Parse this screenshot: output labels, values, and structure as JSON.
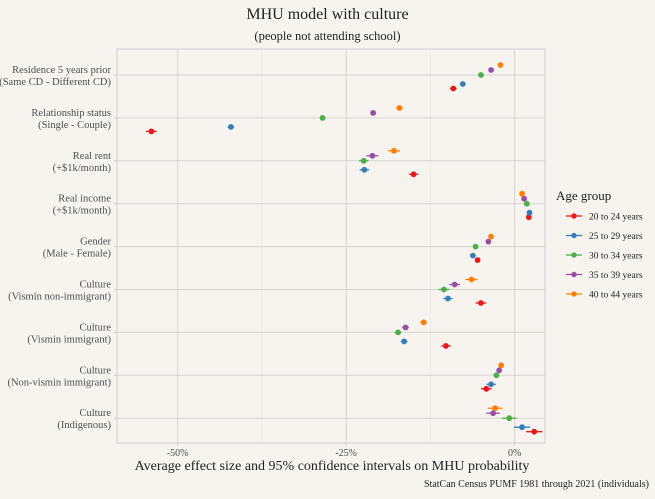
{
  "chart_data": {
    "type": "scatter",
    "subtype": "dot-and-whisker",
    "title": "MHU model with culture",
    "subtitle": "(people not attending school)",
    "xlabel": "Average effect size and 95% confidence intervals on MHU probability",
    "ylabel": "",
    "caption": "StatCan Census PUMF 1981 through 2021 (individuals)",
    "xlim": [
      -59,
      4.5
    ],
    "xticks": [
      -50,
      -25,
      0
    ],
    "xtick_labels": [
      "-50%",
      "-25%",
      "0%"
    ],
    "grid": true,
    "legend": {
      "title": "Age group",
      "position": "right"
    },
    "categories": [
      {
        "line1": "Residence 5 years prior",
        "line2": "(Same CD - Different CD)"
      },
      {
        "line1": "Relationship status",
        "line2": "(Single - Couple)"
      },
      {
        "line1": "Real rent",
        "line2": "(+$1k/month)"
      },
      {
        "line1": "Real income",
        "line2": "(+$1k/month)"
      },
      {
        "line1": "Gender",
        "line2": "(Male - Female)"
      },
      {
        "line1": "Culture",
        "line2": "(Vismin non-immigrant)"
      },
      {
        "line1": "Culture",
        "line2": "(Vismin immigrant)"
      },
      {
        "line1": "Culture",
        "line2": "(Non-vismin immigrant)"
      },
      {
        "line1": "Culture",
        "line2": "(Indigenous)"
      }
    ],
    "series": [
      {
        "name": "20 to 24 years",
        "color": "#e41a1c",
        "values": [
          -9.1,
          -53.9,
          -15.0,
          2.1,
          -5.5,
          -5.0,
          -10.2,
          -4.2,
          2.9
        ],
        "ci_halfwidth": [
          0.5,
          0.8,
          0.7,
          0.2,
          0.3,
          0.8,
          0.7,
          0.8,
          1.2
        ]
      },
      {
        "name": "25 to 29 years",
        "color": "#377eb8",
        "values": [
          -7.7,
          -42.1,
          -22.3,
          2.2,
          -6.2,
          -9.9,
          -16.4,
          -3.5,
          1.1
        ],
        "ci_halfwidth": [
          0.3,
          0.5,
          0.7,
          0.2,
          0.3,
          0.7,
          0.5,
          0.7,
          1.2
        ]
      },
      {
        "name": "30 to 34 years",
        "color": "#4daf4a",
        "values": [
          -5.0,
          -28.5,
          -22.4,
          1.8,
          -5.8,
          -10.5,
          -17.3,
          -2.7,
          -0.8
        ],
        "ci_halfwidth": [
          0.3,
          0.3,
          0.7,
          0.2,
          0.3,
          0.8,
          0.5,
          0.4,
          1.1
        ]
      },
      {
        "name": "35 to 39 years",
        "color": "#984ea3",
        "values": [
          -3.5,
          -21.0,
          -21.1,
          1.4,
          -3.9,
          -8.9,
          -16.2,
          -2.3,
          -3.2
        ],
        "ci_halfwidth": [
          0.3,
          0.4,
          0.9,
          0.2,
          0.3,
          0.8,
          0.5,
          0.4,
          1.0
        ]
      },
      {
        "name": "40 to 44 years",
        "color": "#ff7f00",
        "values": [
          -2.1,
          -17.1,
          -17.9,
          1.1,
          -3.5,
          -6.4,
          -13.5,
          -2.0,
          -2.9
        ],
        "ci_halfwidth": [
          0.3,
          0.5,
          0.9,
          0.2,
          0.3,
          0.9,
          0.5,
          0.3,
          1.1
        ]
      }
    ]
  }
}
